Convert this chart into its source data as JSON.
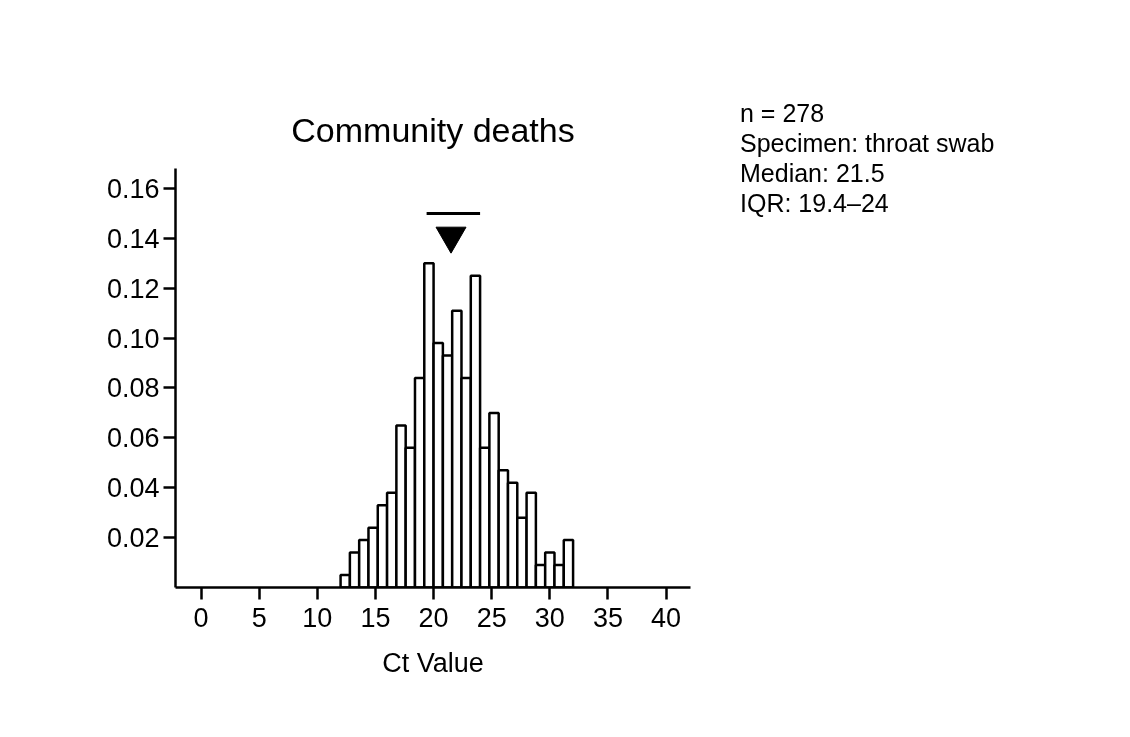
{
  "chart_data": {
    "type": "histogram",
    "title": "Community deaths",
    "xlabel": "Ct Value",
    "bins": [
      12.0,
      12.8,
      13.6,
      14.4,
      15.2,
      16.0,
      16.8,
      17.6,
      18.4,
      19.2,
      20.0,
      20.8,
      21.6,
      22.4,
      23.2,
      24.0,
      24.8,
      25.6,
      26.4,
      27.2,
      28.0,
      28.8,
      29.6,
      30.4,
      31.2,
      32.0
    ],
    "values": [
      0.005,
      0.014,
      0.019,
      0.024,
      0.033,
      0.038,
      0.065,
      0.056,
      0.084,
      0.13,
      0.098,
      0.093,
      0.111,
      0.084,
      0.125,
      0.056,
      0.07,
      0.047,
      0.042,
      0.028,
      0.038,
      0.009,
      0.014,
      0.009,
      0.019
    ],
    "color": "#000000",
    "series": [
      {
        "type": "line",
        "x": [
          19.4,
          24
        ],
        "values": [
          0.15,
          0.15
        ],
        "color": "#000000"
      },
      {
        "type": "scatter",
        "x": [
          21.5
        ],
        "values": [
          0.141
        ],
        "color": "#000000",
        "marker": "triangle"
      }
    ],
    "xlim": [
      -2.2,
      42.1
    ],
    "ylim": [
      0,
      0.168
    ],
    "xticks": [
      0,
      5,
      10,
      15,
      20,
      25,
      30,
      35,
      40
    ],
    "yticks": [
      0.02,
      0.04,
      0.06,
      0.08,
      {
        "value": 0.1,
        "label": "0.10"
      },
      0.12,
      0.14,
      0.16
    ],
    "grid": false,
    "annotations": [
      "n = 278",
      "Specimen: throat swab",
      "Median: 21.5",
      "IQR: 19.4–24"
    ]
  }
}
